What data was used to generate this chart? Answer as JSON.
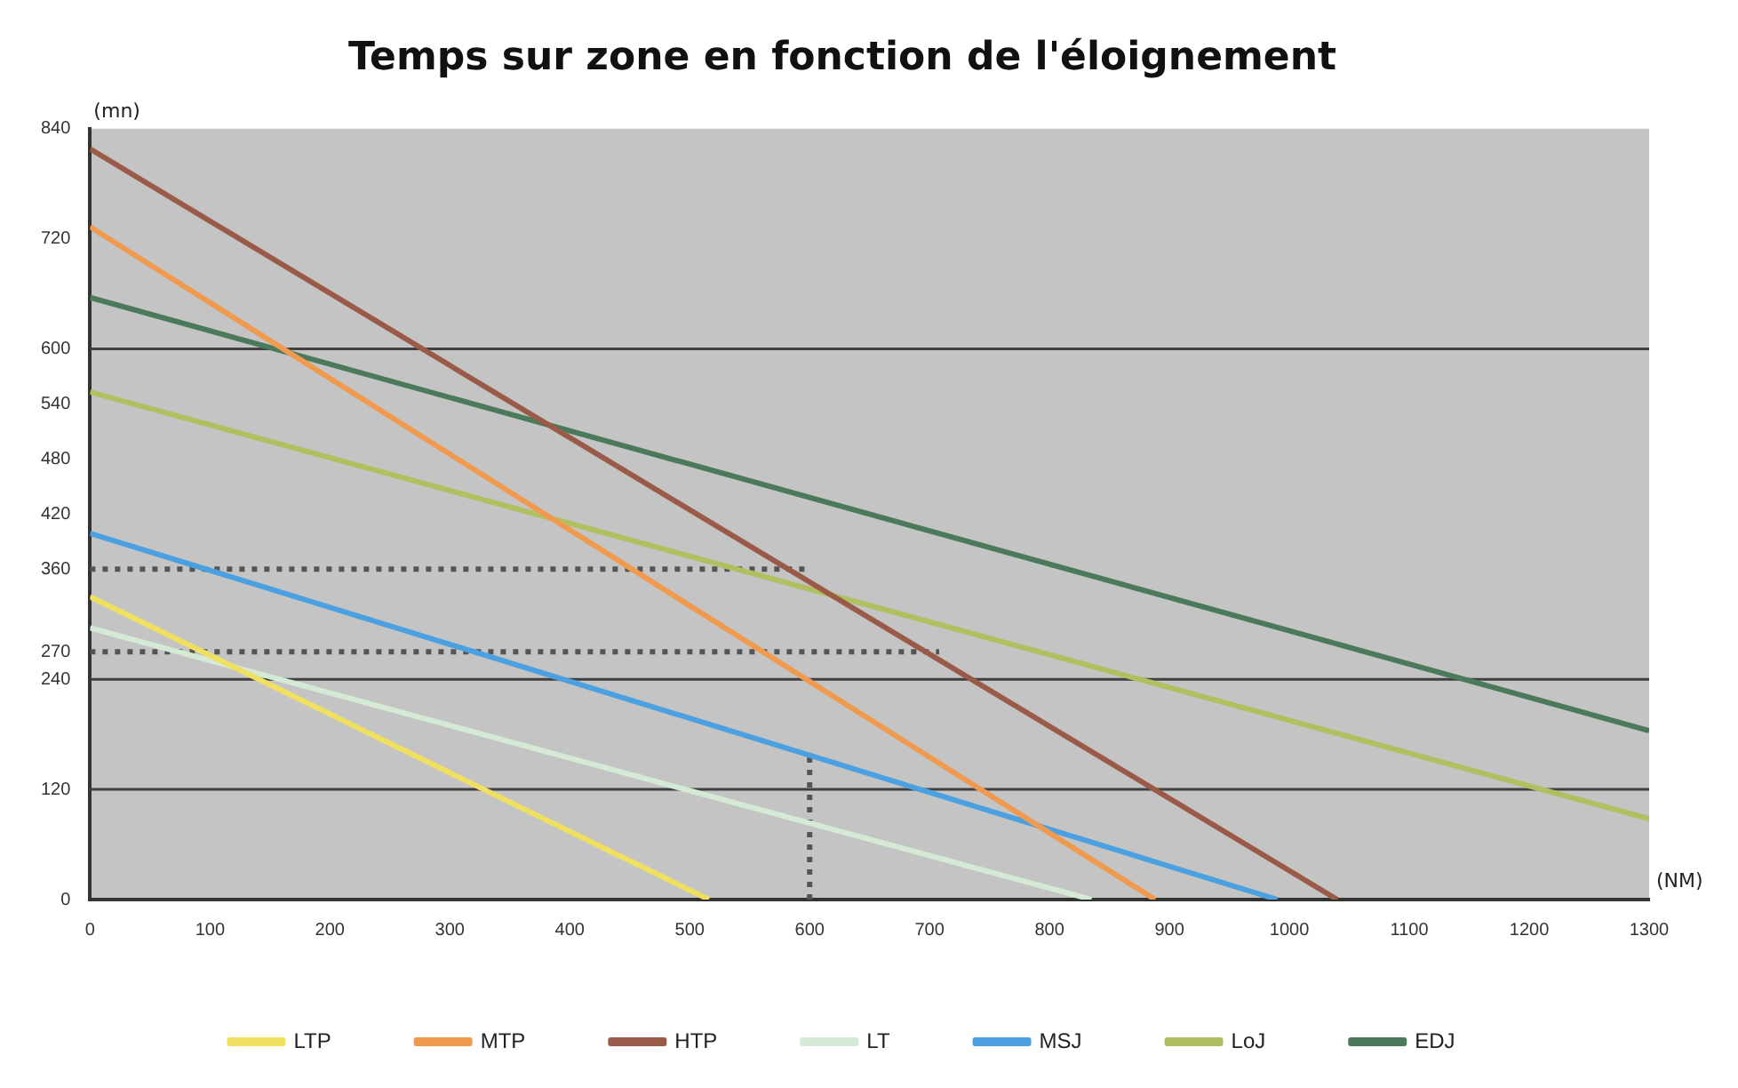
{
  "chart_data": {
    "type": "line",
    "title": "Temps sur zone en fonction de l'éloignement",
    "xlabel": "(NM)",
    "ylabel": "(mn)",
    "xlim": [
      0,
      1300
    ],
    "xticks": [
      0,
      100,
      200,
      300,
      400,
      500,
      600,
      700,
      800,
      900,
      1000,
      1100,
      1200,
      1300
    ],
    "ylim": [
      0,
      840
    ],
    "yticks": [
      0,
      120,
      240,
      270,
      360,
      420,
      480,
      540,
      600,
      720,
      840
    ],
    "grid": false,
    "legend": "bottom",
    "marker": "none",
    "line_style": "solid",
    "ref_lines": [
      {
        "axis": "y",
        "value": 120,
        "color": "#404040"
      },
      {
        "axis": "y",
        "value": 240,
        "color": "#404040"
      },
      {
        "axis": "y",
        "value": 600,
        "color": "#404040"
      }
    ],
    "series": [
      {
        "name": "LTP",
        "color": "#f0e060",
        "x": [
          0,
          516
        ],
        "values": [
          330,
          0
        ]
      },
      {
        "name": "MTP",
        "color": "#f09a50",
        "x": [
          0,
          888
        ],
        "values": [
          733,
          0
        ]
      },
      {
        "name": "HTP",
        "color": "#9a5a48",
        "x": [
          0,
          1040
        ],
        "values": [
          818,
          0
        ]
      },
      {
        "name": "LT",
        "color": "#d4ead4",
        "x": [
          0,
          835
        ],
        "values": [
          296,
          0
        ]
      },
      {
        "name": "MSJ",
        "color": "#4aa0e0",
        "x": [
          0,
          990
        ],
        "values": [
          399,
          0
        ]
      },
      {
        "name": "LoJ",
        "color": "#b0c060",
        "x": [
          0,
          1300
        ],
        "values": [
          553,
          88
        ]
      },
      {
        "name": "EDJ",
        "color": "#4a7a5a",
        "x": [
          0,
          1300
        ],
        "values": [
          656,
          184
        ]
      },
      {
        "color": "#555555",
        "line_style": "dotted",
        "x": [
          0,
          600
        ],
        "values": [
          360,
          360
        ]
      },
      {
        "color": "#555555",
        "line_style": "dotted",
        "x": [
          0,
          708
        ],
        "values": [
          270,
          270
        ]
      },
      {
        "color": "#555555",
        "line_style": "dotted",
        "x": [
          600,
          600
        ],
        "values": [
          0,
          157
        ]
      }
    ]
  }
}
